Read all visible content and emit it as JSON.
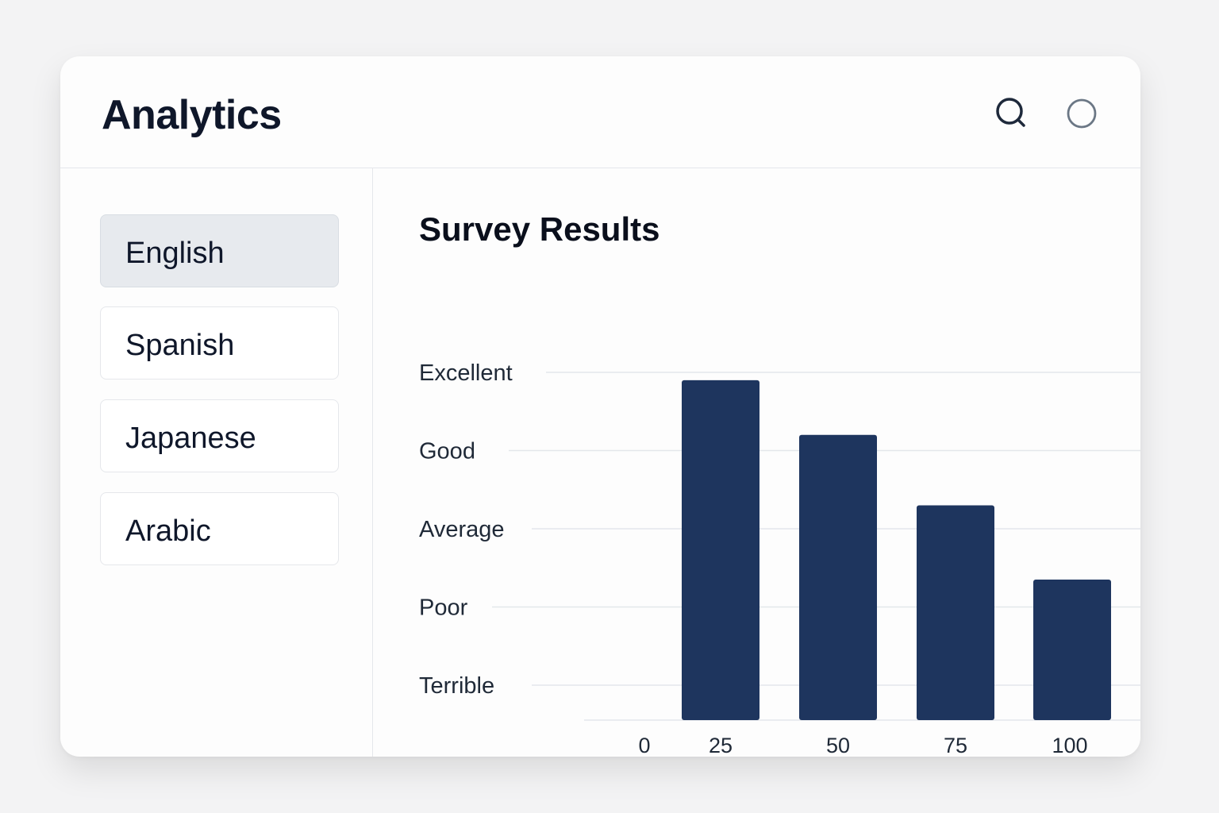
{
  "app": {
    "title": "Analytics"
  },
  "header": {
    "icons": [
      "search-icon",
      "circle-icon"
    ]
  },
  "sidebar": {
    "items": [
      {
        "label": "English",
        "active": true
      },
      {
        "label": "Spanish",
        "active": false
      },
      {
        "label": "Japanese",
        "active": false
      },
      {
        "label": "Arabic",
        "active": false
      }
    ]
  },
  "chart_title": "Survey Results",
  "colors": {
    "bar": "#1e355e",
    "grid": "#e4e7eb",
    "active_item": "#e7eaee"
  },
  "chart_data": {
    "type": "bar",
    "title": "Survey Results",
    "categories": [
      "25",
      "50",
      "75",
      "100"
    ],
    "y_categories": [
      "Terrible",
      "Poor",
      "Average",
      "Good",
      "Excellent"
    ],
    "x_ticks": [
      "0",
      "25",
      "50",
      "75",
      "100"
    ],
    "values": [
      4.9,
      4.2,
      3.3,
      2.35
    ],
    "ylim": [
      0.55,
      5
    ],
    "grid": true,
    "legend": "none"
  }
}
